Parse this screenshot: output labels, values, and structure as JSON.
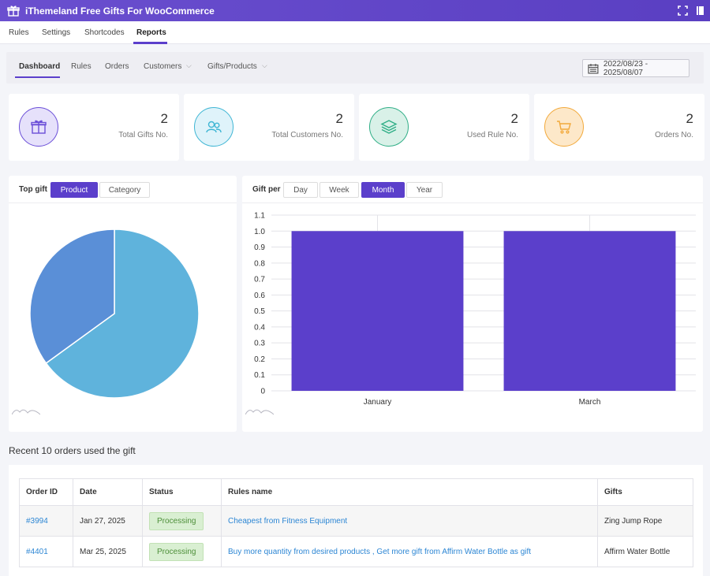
{
  "app": {
    "title": "iThemeland Free Gifts For WooCommerce"
  },
  "main_nav": [
    {
      "label": "Rules"
    },
    {
      "label": "Settings"
    },
    {
      "label": "Shortcodes"
    },
    {
      "label": "Reports",
      "active": true
    }
  ],
  "sub_nav": {
    "tabs": [
      {
        "label": "Dashboard",
        "active": true
      },
      {
        "label": "Rules"
      },
      {
        "label": "Orders"
      },
      {
        "label": "Customers",
        "dropdown": true
      },
      {
        "label": "Gifts/Products",
        "dropdown": true
      }
    ],
    "date_range": "2022/08/23 - 2025/08/07"
  },
  "stats": [
    {
      "value": "2",
      "label": "Total Gifts No.",
      "icon": "gift-icon",
      "color": "#6b4fd8",
      "bg": "#e6e1fb"
    },
    {
      "value": "2",
      "label": "Total Customers No.",
      "icon": "customers-icon",
      "color": "#3fb6d4",
      "bg": "#dff3fa"
    },
    {
      "value": "2",
      "label": "Used Rule No.",
      "icon": "layers-icon",
      "color": "#2fae86",
      "bg": "#d9f1e8"
    },
    {
      "value": "2",
      "label": "Orders No.",
      "icon": "cart-icon",
      "color": "#f2a93b",
      "bg": "#fde8c9"
    }
  ],
  "top_gift": {
    "label": "Top gift",
    "tabs": [
      {
        "label": "Product",
        "active": true
      },
      {
        "label": "Category"
      }
    ]
  },
  "gift_per": {
    "label": "Gift per",
    "tabs": [
      {
        "label": "Day"
      },
      {
        "label": "Week"
      },
      {
        "label": "Month",
        "active": true
      },
      {
        "label": "Year"
      }
    ]
  },
  "chart_data": [
    {
      "type": "pie",
      "slices": [
        {
          "value": 0.65,
          "color": "#5fb3dc"
        },
        {
          "value": 0.35,
          "color": "#5a8fd7"
        }
      ]
    },
    {
      "type": "bar",
      "categories": [
        "January",
        "March"
      ],
      "values": [
        1.0,
        1.0
      ],
      "ylim": [
        0,
        1.1
      ],
      "yticks": [
        "0",
        "0.1",
        "0.2",
        "0.3",
        "0.4",
        "0.5",
        "0.6",
        "0.7",
        "0.8",
        "0.9",
        "1.0",
        "1.1"
      ],
      "color": "#5b3fcb",
      "grid": true
    }
  ],
  "recent_orders": {
    "title": "Recent 10 orders used the gift",
    "columns": [
      "Order ID",
      "Date",
      "Status",
      "Rules name",
      "Gifts"
    ],
    "rows": [
      {
        "id": "#3994",
        "date": "Jan 27, 2025",
        "status": "Processing",
        "rule": "Cheapest from Fitness Equipment",
        "gift": "Zing Jump Rope"
      },
      {
        "id": "#4401",
        "date": "Mar 25, 2025",
        "status": "Processing",
        "rule": "Buy more quantity from desired products , Get more gift from Affirm Water Bottle as gift",
        "gift": "Affirm Water Bottle"
      }
    ]
  }
}
